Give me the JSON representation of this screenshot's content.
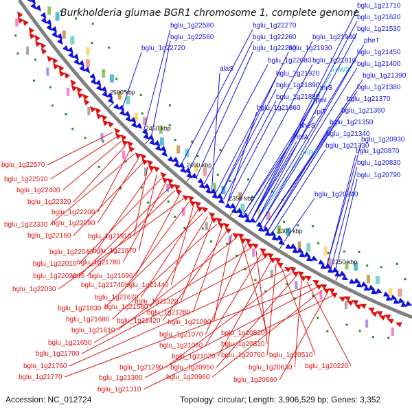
{
  "title": "Burkholderia glumae BGR1 chromosome 1, complete genome",
  "footer": {
    "accession": "Accession: NC_012724",
    "summary": "Topology: circular; Length: 3,906,529 bp; Genes: 3,352"
  },
  "colors": {
    "forward": "#1010e0",
    "reverse": "#e01010",
    "rna": "#22b0d8",
    "backbone": "#808080",
    "dots": "#1d8f1d"
  },
  "ticks": [
    {
      "label": "2500 kbp"
    },
    {
      "label": "2450 kbp"
    },
    {
      "label": "2400 kbp"
    },
    {
      "label": "2350 kbp"
    },
    {
      "label": "2300 kbp"
    },
    {
      "label": "2250 kbp"
    }
  ],
  "forward_labels": [
    {
      "text": "bglu_1g22580",
      "kind": "forward"
    },
    {
      "text": "bglu_1g22270",
      "kind": "forward"
    },
    {
      "text": "bglu_1g22560",
      "kind": "forward"
    },
    {
      "text": "bglu_1g22260",
      "kind": "forward"
    },
    {
      "text": "bglu_1g21940",
      "kind": "forward"
    },
    {
      "text": "bglu_1g22720",
      "kind": "forward"
    },
    {
      "text": "bglu_1g22240",
      "kind": "forward"
    },
    {
      "text": "bglu_1g21930",
      "kind": "forward"
    },
    {
      "text": "alaS",
      "kind": "forward"
    },
    {
      "text": "bglu_1g22080",
      "kind": "forward"
    },
    {
      "text": "bglu_1g21810",
      "kind": "forward"
    },
    {
      "text": "bglu_1g21920",
      "kind": "forward"
    },
    {
      "text": "trnW2",
      "kind": "rna"
    },
    {
      "text": "bglu_1g21890",
      "kind": "forward"
    },
    {
      "text": "thrS",
      "kind": "forward"
    },
    {
      "text": "bglu_1g21880",
      "kind": "forward"
    },
    {
      "text": "rpmI",
      "kind": "forward"
    },
    {
      "text": "bglu_1g21860",
      "kind": "forward"
    },
    {
      "text": "rplT",
      "kind": "forward"
    },
    {
      "text": "pheS",
      "kind": "forward"
    },
    {
      "text": "ihfA",
      "kind": "forward"
    },
    {
      "text": "trnP3",
      "kind": "rna"
    },
    {
      "text": "bglu_1g21710",
      "kind": "forward"
    },
    {
      "text": "bglu_1g21620",
      "kind": "forward"
    },
    {
      "text": "bglu_1g21530",
      "kind": "forward"
    },
    {
      "text": "pheT",
      "kind": "forward"
    },
    {
      "text": "bglu_1g21450",
      "kind": "forward"
    },
    {
      "text": "bglu_1g21400",
      "kind": "forward"
    },
    {
      "text": "bglu_1g21390",
      "kind": "forward"
    },
    {
      "text": "bglu_1g21380",
      "kind": "forward"
    },
    {
      "text": "bglu_1g21370",
      "kind": "forward"
    },
    {
      "text": "bglu_1g21360",
      "kind": "forward"
    },
    {
      "text": "bglu_1g21350",
      "kind": "forward"
    },
    {
      "text": "bglu_1g21340",
      "kind": "forward"
    },
    {
      "text": "bglu_1g21330",
      "kind": "forward"
    },
    {
      "text": "bglu_1g20930",
      "kind": "forward"
    },
    {
      "text": "bglu_1g20870",
      "kind": "forward"
    },
    {
      "text": "bglu_1g20830",
      "kind": "forward"
    },
    {
      "text": "bglu_1g20790",
      "kind": "forward"
    },
    {
      "text": "bglu_1g20940",
      "kind": "forward"
    }
  ],
  "reverse_labels": [
    {
      "text": "bglu_1g22570"
    },
    {
      "text": "bglu_1g22510"
    },
    {
      "text": "bglu_1g22400"
    },
    {
      "text": "bglu_1g22320"
    },
    {
      "text": "bglu_1g22200"
    },
    {
      "text": "bglu_1g22330"
    },
    {
      "text": "bglu_1g22090"
    },
    {
      "text": "bglu_1g22160"
    },
    {
      "text": "bglu_1g21910"
    },
    {
      "text": "bglu_1g22040"
    },
    {
      "text": "bglu_1g21870"
    },
    {
      "text": "bglu_1g22010"
    },
    {
      "text": "bglu_1g21780"
    },
    {
      "text": "bglu_1g22020"
    },
    {
      "text": "valS"
    },
    {
      "text": "bglu_1g21690"
    },
    {
      "text": "bglu_1g22030"
    },
    {
      "text": "bglu_1g21740"
    },
    {
      "text": "bglu_1g21440"
    },
    {
      "text": "bglu_1g21670"
    },
    {
      "text": "bglu_1g21830"
    },
    {
      "text": "bglu_1g21580"
    },
    {
      "text": "bglu_1g21320"
    },
    {
      "text": "bglu_1g21680"
    },
    {
      "text": "bglu_1g21280"
    },
    {
      "text": "bglu_1g21420"
    },
    {
      "text": "bglu_1g21090"
    },
    {
      "text": "bglu_1g21610"
    },
    {
      "text": "bglu_1g20820"
    },
    {
      "text": "bglu_1g21070"
    },
    {
      "text": "bglu_1g21650"
    },
    {
      "text": "bglu_1g20810"
    },
    {
      "text": "bglu_1g21060"
    },
    {
      "text": "bglu_1g21700"
    },
    {
      "text": "bglu_1g21020"
    },
    {
      "text": "bglu_1g20760"
    },
    {
      "text": "bglu_1g20510"
    },
    {
      "text": "bglu_1g21760"
    },
    {
      "text": "bglu_1g21290"
    },
    {
      "text": "bglu_1g20950"
    },
    {
      "text": "bglu_1g20630"
    },
    {
      "text": "bglu_1g20220"
    },
    {
      "text": "bglu_1g21770"
    },
    {
      "text": "bglu_1g21300"
    },
    {
      "text": "bglu_1g20960"
    },
    {
      "text": "bglu_1g20660"
    },
    {
      "text": "bglu_1g21310"
    }
  ]
}
